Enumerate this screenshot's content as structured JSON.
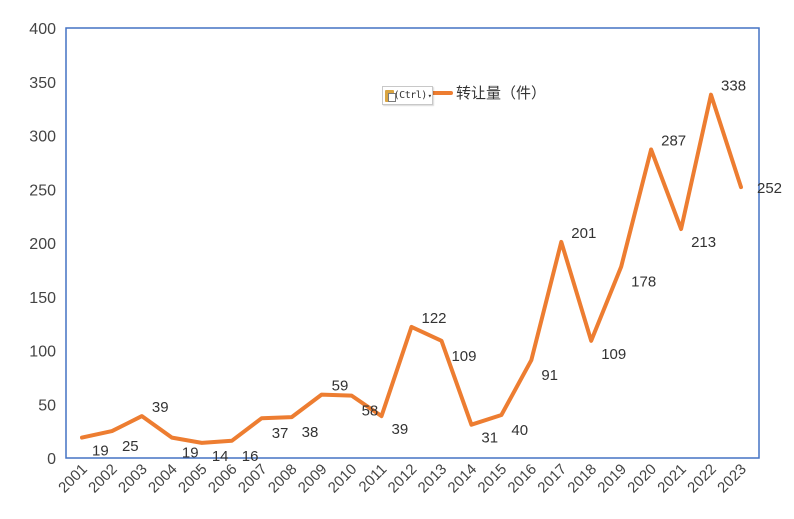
{
  "chart_data": {
    "type": "line",
    "series": [
      {
        "name": "转让量（件）",
        "color": "#ED7D31",
        "x": [
          "2001",
          "2002",
          "2003",
          "2004",
          "2005",
          "2006",
          "2007",
          "2008",
          "2009",
          "2010",
          "2011",
          "2012",
          "2013",
          "2014",
          "2015",
          "2016",
          "2017",
          "2018",
          "2019",
          "2020",
          "2021",
          "2022",
          "2023"
        ],
        "values": [
          19,
          25,
          39,
          19,
          14,
          16,
          37,
          38,
          59,
          58,
          39,
          122,
          109,
          31,
          40,
          91,
          201,
          109,
          178,
          287,
          213,
          338,
          252
        ],
        "labels": [
          "19",
          "25",
          "39",
          "19",
          "14",
          "16",
          "37",
          "38",
          "59",
          "58",
          "39",
          "122",
          "109",
          "31",
          "40",
          "91",
          "201",
          "109",
          "178",
          "287",
          "213",
          "338",
          "252"
        ]
      }
    ],
    "title": "",
    "xlabel": "",
    "ylabel": "",
    "ylim": [
      0,
      400
    ],
    "yticks": [
      "0",
      "50",
      "100",
      "150",
      "200",
      "250",
      "300",
      "350",
      "400"
    ],
    "grid": false,
    "legend": {
      "position": "top-right",
      "entries": [
        "转让量（件）"
      ]
    },
    "plot_border_color": "#4472C4"
  },
  "paste_options": {
    "label": "(Ctrl)",
    "caret": "▾"
  }
}
